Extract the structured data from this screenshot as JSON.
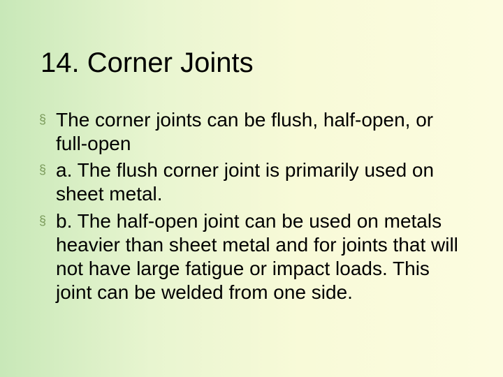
{
  "slide": {
    "title": "14. Corner Joints",
    "bullets": [
      {
        "text": "The corner joints can be flush, half-open, or full-open"
      },
      {
        "text": " a. The flush corner joint is primarily used on sheet metal."
      },
      {
        "text": " b. The half-open joint can be used on metals heavier than sheet metal and for joints that will not have large fatigue or impact loads. This joint can be welded from one side."
      }
    ],
    "colors": {
      "bullet_marker": "#7a9a5a",
      "text": "#000000",
      "bg_gradient_start": "#c8e8b8",
      "bg_gradient_end": "#fcfce0"
    },
    "typography": {
      "title_fontsize": 40,
      "body_fontsize": 28,
      "font_family": "Arial"
    }
  }
}
